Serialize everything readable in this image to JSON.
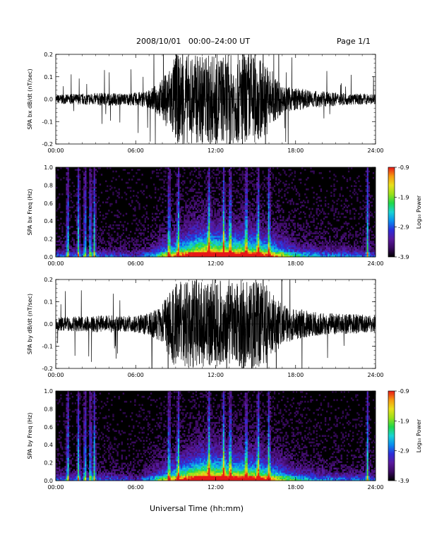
{
  "header": {
    "title": "2008/10/01   00:00–24:00 UT",
    "page": "Page 1/1"
  },
  "footer": {
    "xlabel": "Universal Time (hh:mm)"
  },
  "colors": {
    "background": "#000000",
    "trace": "#000000",
    "colormap": [
      "#000000",
      "#3a0a60",
      "#5a1a9e",
      "#2d2dd9",
      "#0a8ef0",
      "#19d4d4",
      "#1fd84a",
      "#9ae01a",
      "#e8e01c",
      "#f59a10",
      "#e81818"
    ]
  },
  "chart_data": [
    {
      "type": "line",
      "ylabel": "SPA bx dB/dt (nT/sec)",
      "xlim": [
        0,
        24
      ],
      "ylim": [
        -0.2,
        0.2
      ],
      "x_ticks": [
        "00:00",
        "06:00",
        "12:00",
        "18:00",
        "24:00"
      ],
      "y_ticks": [
        "-0.2",
        "-0.1",
        "0.0",
        "0.1",
        "0.2"
      ],
      "envelope": {
        "hours": [
          0,
          2,
          4,
          5,
          6,
          7,
          8,
          9,
          10,
          11,
          12,
          13,
          14,
          15,
          16,
          17,
          18,
          20,
          22,
          24
        ],
        "amplitude": [
          0.02,
          0.025,
          0.03,
          0.025,
          0.03,
          0.04,
          0.09,
          0.2,
          0.2,
          0.2,
          0.2,
          0.2,
          0.2,
          0.2,
          0.15,
          0.06,
          0.05,
          0.035,
          0.025,
          0.025
        ]
      }
    },
    {
      "type": "heatmap",
      "ylabel": "SPA bx Freq (Hz)",
      "xlim": [
        0,
        24
      ],
      "ylim": [
        0,
        1
      ],
      "x_ticks": [
        "00:00",
        "06:00",
        "12:00",
        "18:00",
        "24:00"
      ],
      "y_ticks": [
        "0.0",
        "0.2",
        "0.4",
        "0.6",
        "0.8",
        "1.0"
      ],
      "colorbar": {
        "label": "Log₁₀ Power",
        "ticks": [
          "-0.9",
          "-1.9",
          "-2.9",
          "-3.9"
        ],
        "range": [
          -3.9,
          -0.9
        ]
      },
      "bright_bands_hours": [
        0.9,
        1.7,
        2.2,
        2.6,
        2.9,
        8.5,
        9.2,
        11.5,
        12.6,
        13.1,
        14.3,
        15.2,
        16.0,
        23.4
      ]
    },
    {
      "type": "line",
      "ylabel": "SPA by dB/dt (nT/sec)",
      "xlim": [
        0,
        24
      ],
      "ylim": [
        -0.2,
        0.2
      ],
      "x_ticks": [
        "00:00",
        "06:00",
        "12:00",
        "18:00",
        "24:00"
      ],
      "y_ticks": [
        "-0.2",
        "-0.1",
        "0.0",
        "0.1",
        "0.2"
      ],
      "envelope": {
        "hours": [
          0,
          2,
          4,
          5,
          6,
          7,
          8,
          9,
          10,
          11,
          12,
          13,
          14,
          15,
          16,
          17,
          18,
          20,
          22,
          24
        ],
        "amplitude": [
          0.03,
          0.035,
          0.04,
          0.035,
          0.04,
          0.05,
          0.09,
          0.2,
          0.2,
          0.2,
          0.2,
          0.2,
          0.2,
          0.2,
          0.17,
          0.09,
          0.07,
          0.05,
          0.045,
          0.04
        ]
      }
    },
    {
      "type": "heatmap",
      "ylabel": "SPA by Freq (Hz)",
      "xlim": [
        0,
        24
      ],
      "ylim": [
        0,
        1
      ],
      "x_ticks": [
        "00:00",
        "06:00",
        "12:00",
        "18:00",
        "24:00"
      ],
      "y_ticks": [
        "0.0",
        "0.2",
        "0.4",
        "0.6",
        "0.8",
        "1.0"
      ],
      "colorbar": {
        "label": "Log₁₀ Power",
        "ticks": [
          "-0.9",
          "-1.9",
          "-2.9",
          "-3.9"
        ],
        "range": [
          -3.9,
          -0.9
        ]
      },
      "bright_bands_hours": [
        0.9,
        1.7,
        2.2,
        2.6,
        2.9,
        8.5,
        9.2,
        11.5,
        12.6,
        13.1,
        14.3,
        15.2,
        16.0,
        23.4
      ]
    }
  ]
}
